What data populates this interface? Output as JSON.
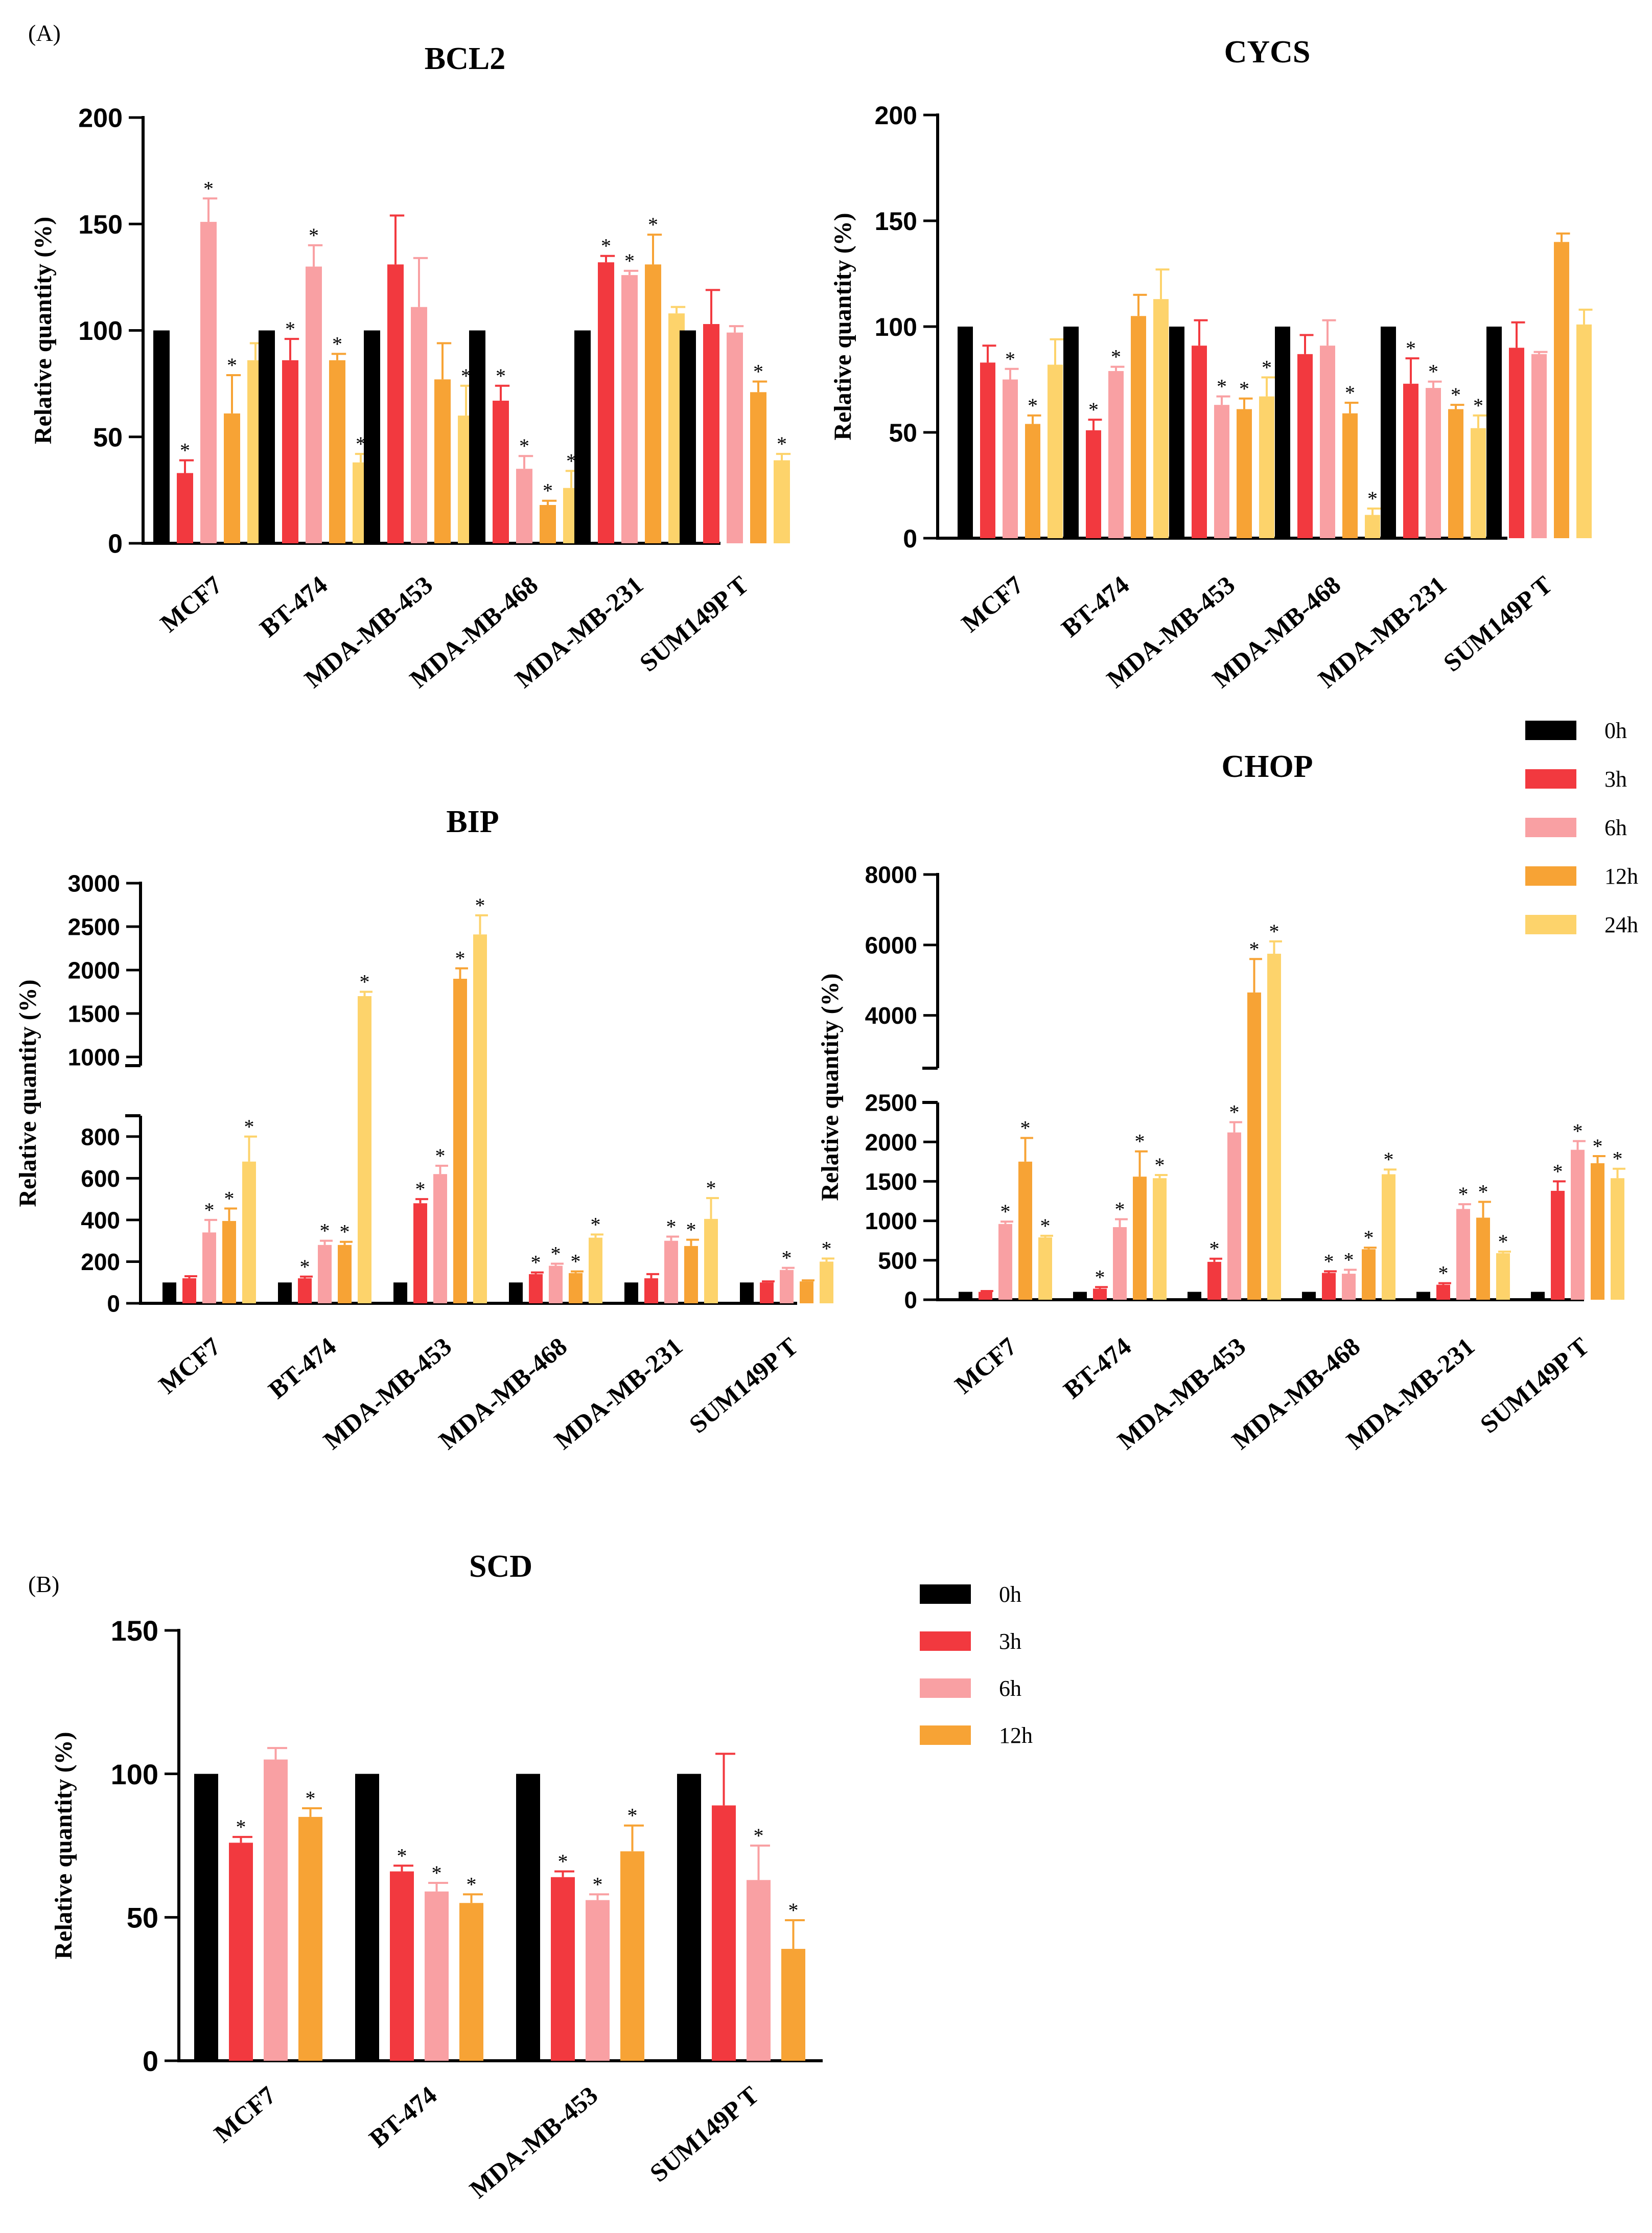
{
  "panel_labels": [
    "(A)",
    "(B)"
  ],
  "colors": {
    "0h": "#000000",
    "3h": "#f2393f",
    "6h": "#f9a0a3",
    "12h": "#f7a335",
    "24h": "#fdd36b"
  },
  "legends": [
    {
      "entries": [
        "0h",
        "3h",
        "6h",
        "12h",
        "24h"
      ]
    },
    {
      "entries": [
        "0h",
        "3h",
        "6h",
        "12h"
      ]
    }
  ],
  "chart_data": [
    {
      "type": "bar",
      "title": "BCL2",
      "ylabel": "Relative quantity (%)",
      "xlabel": "",
      "categories": [
        "MCF7",
        "BT-474",
        "MDA-MB-453",
        "MDA-MB-468",
        "MDA-MB-231",
        "SUM149PT"
      ],
      "category_labels": [
        "MCF7",
        "BT-474",
        "MDA-MB-453",
        "MDA-MB-468",
        "MDA-MB-231",
        "SUM149P T"
      ],
      "ylim": [
        0,
        200
      ],
      "yticks": [
        0,
        50,
        100,
        150,
        200
      ],
      "series": [
        {
          "name": "0h",
          "values": [
            100,
            100,
            100,
            100,
            100,
            100
          ],
          "errors": [
            0,
            0,
            0,
            0,
            0,
            0
          ],
          "sig": [
            false,
            false,
            false,
            false,
            false,
            false
          ]
        },
        {
          "name": "3h",
          "values": [
            33,
            86,
            131,
            67,
            132,
            103
          ],
          "errors": [
            6,
            10,
            23,
            7,
            3,
            16
          ],
          "sig": [
            true,
            true,
            false,
            true,
            true,
            false
          ]
        },
        {
          "name": "6h",
          "values": [
            151,
            130,
            111,
            35,
            126,
            99
          ],
          "errors": [
            11,
            10,
            23,
            6,
            2,
            3
          ],
          "sig": [
            true,
            true,
            false,
            true,
            true,
            false
          ]
        },
        {
          "name": "12h",
          "values": [
            61,
            86,
            77,
            18,
            131,
            71
          ],
          "errors": [
            18,
            3,
            17,
            2,
            14,
            5
          ],
          "sig": [
            true,
            true,
            false,
            true,
            true,
            true
          ]
        },
        {
          "name": "24h",
          "values": [
            86,
            38,
            60,
            26,
            108,
            39
          ],
          "errors": [
            8,
            4,
            14,
            8,
            3,
            3
          ],
          "sig": [
            false,
            true,
            true,
            true,
            false,
            true
          ]
        }
      ]
    },
    {
      "type": "bar",
      "title": "CYCS",
      "ylabel": "Relative quantity (%)",
      "xlabel": "",
      "categories": [
        "MCF7",
        "BT-474",
        "MDA-MB-453",
        "MDA-MB-468",
        "MDA-MB-231",
        "SUM149PT"
      ],
      "category_labels": [
        "MCF7",
        "BT-474",
        "MDA-MB-453",
        "MDA-MB-468",
        "MDA-MB-231",
        "SUM149P T"
      ],
      "ylim": [
        0,
        200
      ],
      "yticks": [
        0,
        50,
        100,
        150,
        200
      ],
      "series": [
        {
          "name": "0h",
          "values": [
            100,
            100,
            100,
            100,
            100,
            100
          ],
          "errors": [
            0,
            0,
            0,
            0,
            0,
            0
          ],
          "sig": [
            false,
            false,
            false,
            false,
            false,
            false
          ]
        },
        {
          "name": "3h",
          "values": [
            83,
            51,
            91,
            87,
            73,
            90
          ],
          "errors": [
            8,
            5,
            12,
            9,
            12,
            12
          ],
          "sig": [
            false,
            true,
            false,
            false,
            true,
            false
          ]
        },
        {
          "name": "6h",
          "values": [
            75,
            79,
            63,
            91,
            71,
            87
          ],
          "errors": [
            5,
            2,
            4,
            12,
            3,
            1
          ],
          "sig": [
            true,
            true,
            true,
            false,
            true,
            false
          ]
        },
        {
          "name": "12h",
          "values": [
            54,
            105,
            61,
            59,
            61,
            140
          ],
          "errors": [
            4,
            10,
            5,
            5,
            2,
            4
          ],
          "sig": [
            true,
            false,
            true,
            true,
            true,
            false
          ]
        },
        {
          "name": "24h",
          "values": [
            82,
            113,
            67,
            11,
            52,
            101
          ],
          "errors": [
            12,
            14,
            9,
            3,
            6,
            7
          ],
          "sig": [
            false,
            false,
            true,
            true,
            true,
            false
          ]
        }
      ]
    },
    {
      "type": "bar",
      "title": "BIP",
      "ylabel": "Relative quantity (%)",
      "xlabel": "",
      "categories": [
        "MCF7",
        "BT-474",
        "MDA-MB-453",
        "MDA-MB-468",
        "MDA-MB-231",
        "SUM149PT"
      ],
      "category_labels": [
        "MCF7",
        "BT-474",
        "MDA-MB-453",
        "MDA-MB-468",
        "MDA-MB-231",
        "SUM149P T"
      ],
      "axis_break": {
        "lower": [
          0,
          900
        ],
        "upper": [
          900,
          3000
        ]
      },
      "yticks_lower": [
        0,
        200,
        400,
        600,
        800
      ],
      "yticks_upper": [
        1000,
        1500,
        2000,
        2500,
        3000
      ],
      "series": [
        {
          "name": "0h",
          "values": [
            100,
            100,
            100,
            100,
            100,
            100
          ],
          "errors": [
            0,
            0,
            0,
            0,
            0,
            0
          ],
          "sig": [
            false,
            false,
            false,
            false,
            false,
            false
          ]
        },
        {
          "name": "3h",
          "values": [
            120,
            120,
            480,
            140,
            120,
            100
          ],
          "errors": [
            10,
            8,
            20,
            8,
            20,
            5
          ],
          "sig": [
            false,
            true,
            true,
            true,
            false,
            false
          ]
        },
        {
          "name": "6h",
          "values": [
            340,
            280,
            620,
            180,
            300,
            160
          ],
          "errors": [
            60,
            20,
            40,
            10,
            20,
            10
          ],
          "sig": [
            true,
            true,
            true,
            true,
            true,
            true
          ]
        },
        {
          "name": "12h",
          "values": [
            395,
            280,
            1900,
            145,
            275,
            105
          ],
          "errors": [
            60,
            15,
            120,
            8,
            30,
            5
          ],
          "sig": [
            true,
            true,
            true,
            true,
            true,
            false
          ]
        },
        {
          "name": "24h",
          "values": [
            680,
            1700,
            2410,
            315,
            405,
            200
          ],
          "errors": [
            120,
            50,
            220,
            15,
            100,
            15
          ],
          "sig": [
            true,
            true,
            true,
            true,
            true,
            true
          ]
        }
      ]
    },
    {
      "type": "bar",
      "title": "CHOP",
      "ylabel": "Relative quantity (%)",
      "xlabel": "",
      "categories": [
        "MCF7",
        "BT-474",
        "MDA-MB-453",
        "MDA-MB-468",
        "MDA-MB-231",
        "SUM149PT"
      ],
      "category_labels": [
        "MCF7",
        "BT-474",
        "MDA-MB-453",
        "MDA-MB-468",
        "MDA-MB-231",
        "SUM149P T"
      ],
      "axis_break": {
        "lower": [
          0,
          2500
        ],
        "upper": [
          2500,
          8000
        ]
      },
      "yticks_lower": [
        0,
        500,
        1000,
        1500,
        2000,
        2500
      ],
      "yticks_upper": [
        4000,
        6000,
        8000
      ],
      "series": [
        {
          "name": "0h",
          "values": [
            100,
            100,
            100,
            100,
            100,
            100
          ],
          "errors": [
            0,
            0,
            0,
            0,
            0,
            0
          ],
          "sig": [
            false,
            false,
            false,
            false,
            false,
            false
          ]
        },
        {
          "name": "3h",
          "values": [
            100,
            140,
            480,
            340,
            190,
            1380
          ],
          "errors": [
            10,
            20,
            40,
            20,
            20,
            120
          ],
          "sig": [
            false,
            true,
            true,
            true,
            true,
            true
          ]
        },
        {
          "name": "6h",
          "values": [
            960,
            920,
            2120,
            330,
            1150,
            1900
          ],
          "errors": [
            30,
            100,
            130,
            50,
            60,
            110
          ],
          "sig": [
            true,
            true,
            true,
            true,
            true,
            true
          ]
        },
        {
          "name": "12h",
          "values": [
            1750,
            1560,
            4650,
            640,
            1040,
            1730
          ],
          "errors": [
            300,
            320,
            950,
            20,
            200,
            90
          ],
          "sig": [
            true,
            true,
            true,
            true,
            true,
            true
          ]
        },
        {
          "name": "24h",
          "values": [
            790,
            1540,
            5750,
            1590,
            590,
            1540
          ],
          "errors": [
            20,
            40,
            350,
            60,
            20,
            120
          ],
          "sig": [
            true,
            true,
            true,
            true,
            true,
            true
          ]
        }
      ]
    },
    {
      "type": "bar",
      "title": "SCD",
      "ylabel": "Relative quantity (%)",
      "xlabel": "",
      "categories": [
        "MCF7",
        "BT-474",
        "MDA-MB-453",
        "SUM149PT"
      ],
      "category_labels": [
        "MCF7",
        "BT-474",
        "MDA-MB-453",
        "SUM149P T"
      ],
      "ylim": [
        0,
        150
      ],
      "yticks": [
        0,
        50,
        100,
        150
      ],
      "series": [
        {
          "name": "0h",
          "values": [
            100,
            100,
            100,
            100
          ],
          "errors": [
            0,
            0,
            0,
            0
          ],
          "sig": [
            false,
            false,
            false,
            false
          ]
        },
        {
          "name": "3h",
          "values": [
            76,
            66,
            64,
            89
          ],
          "errors": [
            2,
            2,
            2,
            18
          ],
          "sig": [
            true,
            true,
            true,
            false
          ]
        },
        {
          "name": "6h",
          "values": [
            105,
            59,
            56,
            63
          ],
          "errors": [
            4,
            3,
            2,
            12
          ],
          "sig": [
            false,
            true,
            true,
            true
          ]
        },
        {
          "name": "12h",
          "values": [
            85,
            55,
            73,
            39
          ],
          "errors": [
            3,
            3,
            9,
            10
          ],
          "sig": [
            true,
            true,
            true,
            true
          ]
        }
      ]
    }
  ]
}
